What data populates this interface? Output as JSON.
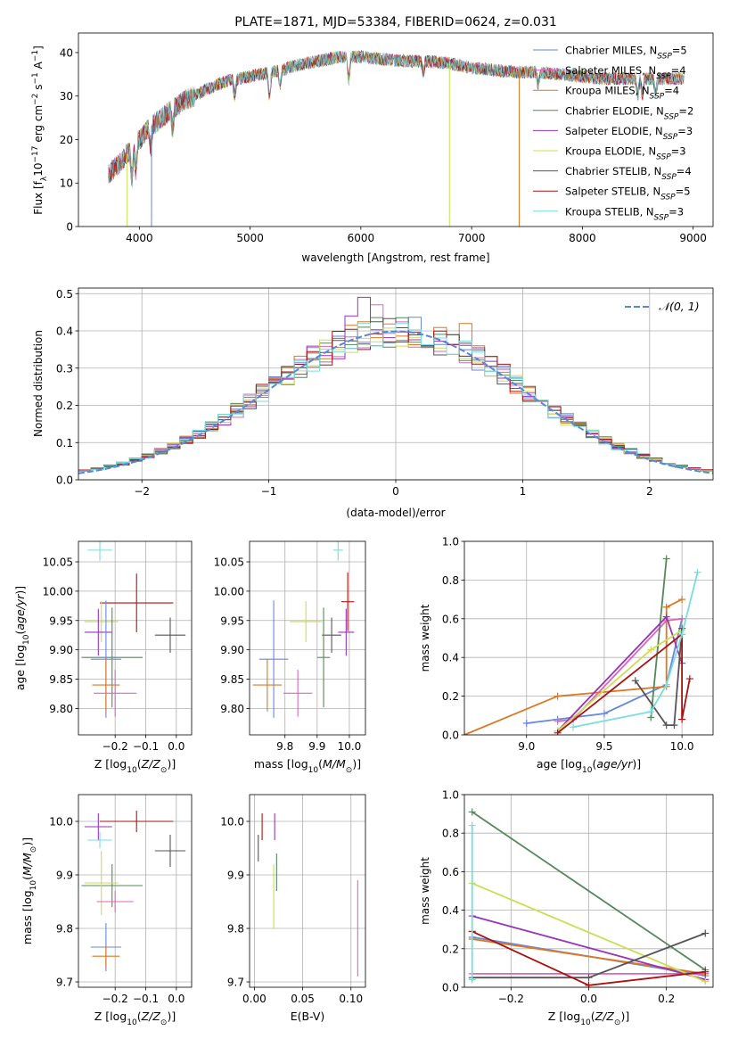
{
  "colors": {
    "chabrier_miles": "#6688dd",
    "salpeter_miles": "#dd66bb",
    "kroupa_miles": "#dd7722",
    "chabrier_elodie": "#55885a",
    "salpeter_elodie": "#9933bb",
    "kroupa_elodie": "#ccdd55",
    "chabrier_stelib": "#555555",
    "salpeter_stelib": "#aa1111",
    "kroupa_stelib": "#77dddd",
    "normal": "#5588dd"
  },
  "chart_data": [
    {
      "id": "spectrum",
      "type": "line",
      "title": "PLATE=1871, MJD=53384, FIBERID=0624, z=0.031",
      "xlabel": "wavelength [Angstrom, rest frame]",
      "ylabel": "Flux [f_λ 10^-17 erg cm^-2 s^-1 A^-1]",
      "xlim": [
        3450,
        9180
      ],
      "ylim": [
        0,
        44.5
      ],
      "xticks": [
        4000,
        5000,
        6000,
        7000,
        8000,
        9000
      ],
      "yticks": [
        0,
        10,
        20,
        30,
        40
      ],
      "grid": false,
      "legend_position": "top-right",
      "legend": [
        "Chabrier MILES, N_SSP=5",
        "Salpeter MILES, N_SSP=4",
        "Kroupa MILES, N_SSP=4",
        "Chabrier ELODIE, N_SSP=2",
        "Salpeter ELODIE, N_SSP=3",
        "Kroupa ELODIE, N_SSP=3",
        "Chabrier STELIB, N_SSP=4",
        "Salpeter STELIB, N_SSP=5",
        "Kroupa STELIB, N_SSP=3"
      ],
      "data_trend": {
        "x": [
          3720,
          3800,
          3900,
          4000,
          4100,
          4200,
          4300,
          4400,
          4500,
          4600,
          4700,
          4800,
          4900,
          5000,
          5100,
          5200,
          5300,
          5400,
          5500,
          5600,
          5700,
          5800,
          5900,
          6000,
          6200,
          6400,
          6600,
          6800,
          7000,
          7200,
          7400,
          7600,
          7800,
          8000,
          8200,
          8400,
          8600,
          8800,
          8920
        ],
        "y": [
          12,
          14,
          17,
          20,
          23,
          25,
          27,
          29,
          30,
          31.5,
          32.5,
          33.5,
          34,
          34.5,
          35,
          35.5,
          36,
          37,
          37.5,
          38,
          38.5,
          39,
          39,
          39,
          38.5,
          38,
          38,
          37.5,
          36.5,
          36,
          35.5,
          35.5,
          35,
          34.5,
          34,
          34,
          34,
          34,
          34
        ]
      },
      "absorption_lines": [
        {
          "x": 3934,
          "depth": 8
        },
        {
          "x": 3969,
          "depth": 7
        },
        {
          "x": 4102,
          "depth": 5
        },
        {
          "x": 4300,
          "depth": 5
        },
        {
          "x": 4861,
          "depth": 4
        },
        {
          "x": 5175,
          "depth": 6
        },
        {
          "x": 5270,
          "depth": 4
        },
        {
          "x": 5890,
          "depth": 6
        },
        {
          "x": 6563,
          "depth": 3
        },
        {
          "x": 7600,
          "depth": 3
        },
        {
          "x": 8500,
          "depth": 4
        },
        {
          "x": 8542,
          "depth": 4
        },
        {
          "x": 8662,
          "depth": 4
        }
      ],
      "drop_lines": [
        {
          "x": 3890,
          "color": "kroupa_elodie"
        },
        {
          "x": 4110,
          "color": "chabrier_miles"
        },
        {
          "x": 6800,
          "color": "kroupa_elodie"
        },
        {
          "x": 7430,
          "color": "kroupa_miles"
        }
      ]
    },
    {
      "id": "residuals",
      "type": "histogram",
      "xlabel": "(data-model)/error",
      "ylabel": "Normed distribution",
      "xlim": [
        -2.5,
        2.5
      ],
      "ylim": [
        0,
        0.515
      ],
      "xticks": [
        -2,
        -1,
        0,
        1,
        2
      ],
      "yticks": [
        0.0,
        0.1,
        0.2,
        0.3,
        0.4,
        0.5
      ],
      "grid": true,
      "legend_position": "top-right",
      "legend": [
        "𝒩(0, 1)"
      ],
      "bin_width": 0.1,
      "spikes": [
        {
          "series": "salpeter_elodie",
          "x": -0.2,
          "value": 0.49
        },
        {
          "series": "salpeter_miles",
          "x": -0.1,
          "value": 0.47
        },
        {
          "series": "kroupa_miles",
          "x": 0.55,
          "value": 0.42
        },
        {
          "series": "salpeter_elodie",
          "x": -0.3,
          "value": 0.44
        }
      ]
    },
    {
      "id": "age-vs-Z",
      "type": "scatter",
      "xlabel": "Z [log10(Z/Z⊙)]",
      "ylabel": "age  [log10(age/yr)]",
      "xlim": [
        -0.32,
        0.05
      ],
      "ylim": [
        9.755,
        10.085
      ],
      "xticks": [
        -0.2,
        -0.1,
        0.0
      ],
      "yticks": [
        9.8,
        9.85,
        9.9,
        9.95,
        10.0,
        10.05
      ],
      "grid": true,
      "points": [
        {
          "series": "kroupa_stelib",
          "x": -0.25,
          "y": 10.07,
          "xerr": 0.04,
          "yerr": 0.018
        },
        {
          "series": "salpeter_stelib",
          "x": -0.13,
          "y": 9.98,
          "xerr": 0.12,
          "yerr": 0.05
        },
        {
          "series": "kroupa_elodie",
          "x": -0.245,
          "y": 9.948,
          "xerr": 0.055,
          "yerr": 0.035
        },
        {
          "series": "chabrier_stelib",
          "x": -0.02,
          "y": 9.925,
          "xerr": 0.05,
          "yerr": 0.03
        },
        {
          "series": "salpeter_elodie",
          "x": -0.255,
          "y": 9.93,
          "xerr": 0.045,
          "yerr": 0.04
        },
        {
          "series": "chabrier_elodie",
          "x": -0.21,
          "y": 9.887,
          "xerr": 0.1,
          "yerr": 0.085
        },
        {
          "series": "chabrier_miles",
          "x": -0.23,
          "y": 9.884,
          "xerr": 0.05,
          "yerr": 0.1
        },
        {
          "series": "kroupa_miles",
          "x": -0.23,
          "y": 9.84,
          "xerr": 0.045,
          "yerr": 0.045
        },
        {
          "series": "salpeter_miles",
          "x": -0.2,
          "y": 9.826,
          "xerr": 0.07,
          "yerr": 0.04
        }
      ]
    },
    {
      "id": "age-vs-mass",
      "type": "scatter",
      "xlabel": "mass [log10(M/M⊙)]",
      "ylabel": "",
      "xlim": [
        9.69,
        10.05
      ],
      "ylim": [
        9.755,
        10.085
      ],
      "xticks": [
        9.8,
        9.9,
        10.0
      ],
      "yticks": [
        9.8,
        9.85,
        9.9,
        9.95,
        10.0,
        10.05
      ],
      "grid": true,
      "points": [
        {
          "series": "kroupa_stelib",
          "x": 9.965,
          "y": 10.07,
          "xerr": 0.015,
          "yerr": 0.018
        },
        {
          "series": "salpeter_stelib",
          "x": 9.995,
          "y": 9.982,
          "xerr": 0.02,
          "yerr": 0.05
        },
        {
          "series": "kroupa_elodie",
          "x": 9.865,
          "y": 9.948,
          "xerr": 0.05,
          "yerr": 0.035
        },
        {
          "series": "chabrier_stelib",
          "x": 9.945,
          "y": 9.925,
          "xerr": 0.03,
          "yerr": 0.03
        },
        {
          "series": "salpeter_elodie",
          "x": 9.99,
          "y": 9.93,
          "xerr": 0.025,
          "yerr": 0.04
        },
        {
          "series": "chabrier_elodie",
          "x": 9.92,
          "y": 9.887,
          "xerr": 0.02,
          "yerr": 0.085
        },
        {
          "series": "chabrier_miles",
          "x": 9.765,
          "y": 9.884,
          "xerr": 0.045,
          "yerr": 0.1
        },
        {
          "series": "kroupa_miles",
          "x": 9.745,
          "y": 9.84,
          "xerr": 0.045,
          "yerr": 0.045
        },
        {
          "series": "salpeter_miles",
          "x": 9.84,
          "y": 9.826,
          "xerr": 0.045,
          "yerr": 0.04
        }
      ]
    },
    {
      "id": "weight-vs-age",
      "type": "line",
      "xlabel": "age  [log10(age/yr)]",
      "ylabel": "mass weight",
      "xlim": [
        8.6,
        10.2
      ],
      "ylim": [
        0,
        1.0
      ],
      "xticks": [
        9.0,
        9.5,
        10.0
      ],
      "yticks": [
        0.0,
        0.2,
        0.4,
        0.6,
        0.8,
        1.0
      ],
      "grid": true,
      "series": [
        {
          "name": "chabrier_miles",
          "x": [
            9.0,
            9.2,
            9.5,
            9.9,
            10.0
          ],
          "y": [
            0.06,
            0.08,
            0.11,
            0.26,
            0.6
          ]
        },
        {
          "name": "salpeter_miles",
          "x": [
            9.2,
            9.3,
            9.9,
            10.0
          ],
          "y": [
            0.07,
            0.08,
            0.59,
            0.6
          ]
        },
        {
          "name": "kroupa_miles",
          "x": [
            8.6,
            9.2,
            9.9,
            9.9,
            10.0
          ],
          "y": [
            0.0,
            0.2,
            0.25,
            0.66,
            0.7
          ]
        },
        {
          "name": "chabrier_elodie",
          "x": [
            9.8,
            9.9
          ],
          "y": [
            0.09,
            0.91
          ]
        },
        {
          "name": "salpeter_elodie",
          "x": [
            9.2,
            9.9,
            10.0
          ],
          "y": [
            0.02,
            0.61,
            0.37
          ]
        },
        {
          "name": "kroupa_elodie",
          "x": [
            9.2,
            9.8,
            10.0
          ],
          "y": [
            0.02,
            0.44,
            0.54
          ]
        },
        {
          "name": "chabrier_stelib",
          "x": [
            9.7,
            9.9,
            9.95,
            10.0
          ],
          "y": [
            0.28,
            0.05,
            0.05,
            0.55
          ]
        },
        {
          "name": "salpeter_stelib",
          "x": [
            9.2,
            10.0,
            10.0,
            10.05
          ],
          "y": [
            0.01,
            0.52,
            0.08,
            0.29
          ]
        },
        {
          "name": "kroupa_stelib",
          "x": [
            9.3,
            9.8,
            9.9,
            10.0,
            10.1
          ],
          "y": [
            0.04,
            0.12,
            0.26,
            0.52,
            0.84
          ]
        }
      ]
    },
    {
      "id": "mass-vs-Z",
      "type": "scatter",
      "xlabel": "Z [log10(Z/Z⊙)]",
      "ylabel": "mass [log10(M/M⊙)]",
      "xlim": [
        -0.32,
        0.05
      ],
      "ylim": [
        9.69,
        10.05
      ],
      "xticks": [
        -0.2,
        -0.1,
        0.0
      ],
      "yticks": [
        9.7,
        9.8,
        9.9,
        10.0
      ],
      "grid": true,
      "points": [
        {
          "series": "salpeter_stelib",
          "x": -0.13,
          "y": 10.0,
          "xerr": 0.12,
          "yerr": 0.02
        },
        {
          "series": "salpeter_elodie",
          "x": -0.255,
          "y": 9.99,
          "xerr": 0.045,
          "yerr": 0.025
        },
        {
          "series": "kroupa_stelib",
          "x": -0.25,
          "y": 9.965,
          "xerr": 0.04,
          "yerr": 0.015
        },
        {
          "series": "chabrier_stelib",
          "x": -0.02,
          "y": 9.945,
          "xerr": 0.05,
          "yerr": 0.03
        },
        {
          "series": "chabrier_elodie",
          "x": -0.21,
          "y": 9.88,
          "xerr": 0.1,
          "yerr": 0.04
        },
        {
          "series": "kroupa_elodie",
          "x": -0.245,
          "y": 9.885,
          "xerr": 0.055,
          "yerr": 0.06
        },
        {
          "series": "salpeter_miles",
          "x": -0.2,
          "y": 9.85,
          "xerr": 0.06,
          "yerr": 0.02
        },
        {
          "series": "chabrier_miles",
          "x": -0.23,
          "y": 9.765,
          "xerr": 0.05,
          "yerr": 0.045
        },
        {
          "series": "kroupa_miles",
          "x": -0.23,
          "y": 9.748,
          "xerr": 0.045,
          "yerr": 0.02
        }
      ]
    },
    {
      "id": "mass-vs-ebv",
      "type": "scatter",
      "xlabel": "E(B-V)",
      "ylabel": "",
      "xlim": [
        -0.005,
        0.115
      ],
      "ylim": [
        9.69,
        10.05
      ],
      "xticks": [
        0.0,
        0.05,
        0.1
      ],
      "yticks": [
        9.7,
        9.8,
        9.9,
        10.0
      ],
      "grid": true,
      "points": [
        {
          "series": "salpeter_stelib",
          "x": 0.008,
          "y": 9.99,
          "xerr": 0,
          "yerr": 0.025
        },
        {
          "series": "salpeter_elodie",
          "x": 0.021,
          "y": 9.99,
          "xerr": 0,
          "yerr": 0.025
        },
        {
          "series": "chabrier_stelib",
          "x": 0.004,
          "y": 9.95,
          "xerr": 0,
          "yerr": 0.025
        },
        {
          "series": "chabrier_elodie",
          "x": 0.023,
          "y": 9.905,
          "xerr": 0,
          "yerr": 0.035
        },
        {
          "series": "kroupa_elodie",
          "x": 0.02,
          "y": 9.86,
          "xerr": 0,
          "yerr": 0.06
        },
        {
          "series": "salpeter_miles",
          "x": 0.107,
          "y": 9.8,
          "xerr": 0,
          "yerr": 0.09
        }
      ]
    },
    {
      "id": "weight-vs-Z",
      "type": "line",
      "xlabel": "Z [log10(Z/Z⊙)]",
      "ylabel": "mass weight",
      "xlim": [
        -0.32,
        0.32
      ],
      "ylim": [
        0,
        1.0
      ],
      "xticks": [
        -0.2,
        0.0,
        0.2
      ],
      "yticks": [
        0.0,
        0.2,
        0.4,
        0.6,
        0.8,
        1.0
      ],
      "grid": true,
      "series": [
        {
          "name": "chabrier_miles",
          "x": [
            -0.3,
            0.3
          ],
          "y": [
            0.26,
            0.06
          ]
        },
        {
          "name": "salpeter_miles",
          "x": [
            -0.3,
            0.3
          ],
          "y": [
            0.07,
            0.07
          ]
        },
        {
          "name": "kroupa_miles",
          "x": [
            -0.3,
            0.3
          ],
          "y": [
            0.25,
            0.07
          ]
        },
        {
          "name": "chabrier_elodie",
          "x": [
            -0.3,
            0.3
          ],
          "y": [
            0.91,
            0.09
          ]
        },
        {
          "name": "salpeter_elodie",
          "x": [
            -0.3,
            0.3
          ],
          "y": [
            0.37,
            0.04
          ]
        },
        {
          "name": "kroupa_elodie",
          "x": [
            -0.3,
            0.3
          ],
          "y": [
            0.54,
            0.03
          ]
        },
        {
          "name": "chabrier_stelib",
          "x": [
            -0.3,
            0.0,
            0.3
          ],
          "y": [
            0.05,
            0.05,
            0.28
          ]
        },
        {
          "name": "salpeter_stelib",
          "x": [
            -0.3,
            0.0,
            0.3
          ],
          "y": [
            0.29,
            0.01,
            0.08
          ]
        },
        {
          "name": "kroupa_stelib",
          "x": [
            -0.3,
            -0.3
          ],
          "y": [
            0.04,
            0.84
          ]
        }
      ]
    }
  ]
}
